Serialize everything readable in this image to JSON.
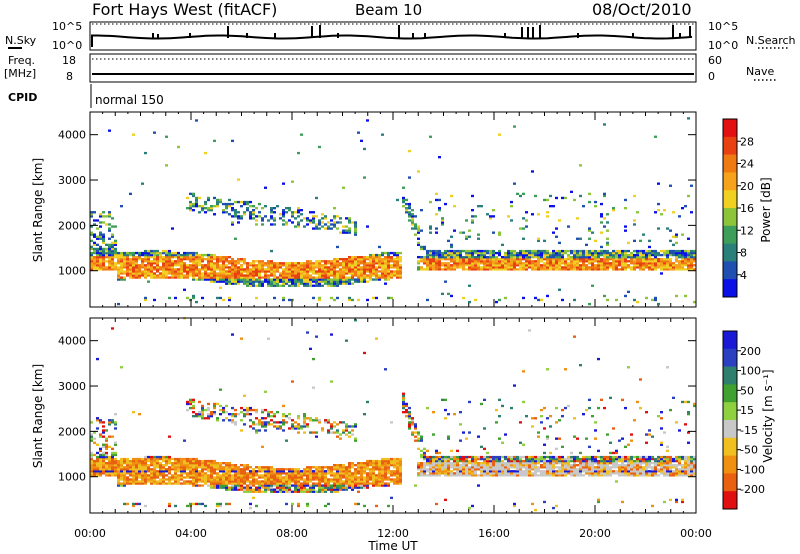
{
  "header": {
    "title": "Fort Hays West (fitACF)",
    "beam": "Beam 10",
    "date": "08/Oct/2010"
  },
  "top_panels": {
    "nsky_label": "N.Sky",
    "nsky_top_tick": "10^5",
    "nsky_bottom_tick": "10^0",
    "nsearch_label": "N.Search",
    "nsearch_top_tick": "10^5",
    "nsearch_bottom_tick": "10^0",
    "freq_label": "Freq.",
    "freq_unit": "[MHz]",
    "freq_top_tick": "18",
    "freq_bottom_tick": "8",
    "nave_label": "Nave",
    "nave_top_tick": "60",
    "nave_bottom_tick": "0",
    "cpid_label": "CPID",
    "cpid_value": "normal 150"
  },
  "colors": {
    "power_scale": [
      "#0a10e6",
      "#1f4fb0",
      "#2a7f7a",
      "#3c9e58",
      "#8cc43a",
      "#f0d020",
      "#f6a21a",
      "#f07a12",
      "#e84010",
      "#e21010"
    ],
    "velocity_scale": [
      "#1a1ad6",
      "#2a40c0",
      "#2e7f6e",
      "#40a030",
      "#8ed040",
      "#c8c8c8",
      "#f0c020",
      "#f09010",
      "#e86010",
      "#e01010"
    ]
  },
  "chart_data": [
    {
      "type": "heatmap",
      "name": "power",
      "ylabel": "Slant Range [km]",
      "xlabel": "Time UT",
      "x_range_hours": [
        0,
        24
      ],
      "ylim": [
        200,
        4500
      ],
      "y_ticks": [
        "1000",
        "2000",
        "3000",
        "4000"
      ],
      "x_ticks": [
        "00:00",
        "04:00",
        "08:00",
        "12:00",
        "16:00",
        "20:00",
        "00:00"
      ],
      "colorbar": {
        "label": "Power [dB]",
        "range": [
          0,
          32
        ],
        "tick_labels": [
          "4",
          "8",
          "12",
          "16",
          "20",
          "24",
          "28"
        ]
      }
    },
    {
      "type": "heatmap",
      "name": "velocity",
      "ylabel": "Slant Range [km]",
      "xlabel": "Time UT",
      "x_range_hours": [
        0,
        24
      ],
      "ylim": [
        200,
        4500
      ],
      "y_ticks": [
        "1000",
        "2000",
        "3000",
        "4000"
      ],
      "x_ticks": [
        "00:00",
        "04:00",
        "08:00",
        "12:00",
        "16:00",
        "20:00",
        "00:00"
      ],
      "colorbar": {
        "label": "Velocity [m s⁻¹]",
        "tick_labels": [
          "200",
          "100",
          "50",
          "15",
          "-15",
          "-50",
          "-100",
          "-200"
        ]
      }
    }
  ]
}
